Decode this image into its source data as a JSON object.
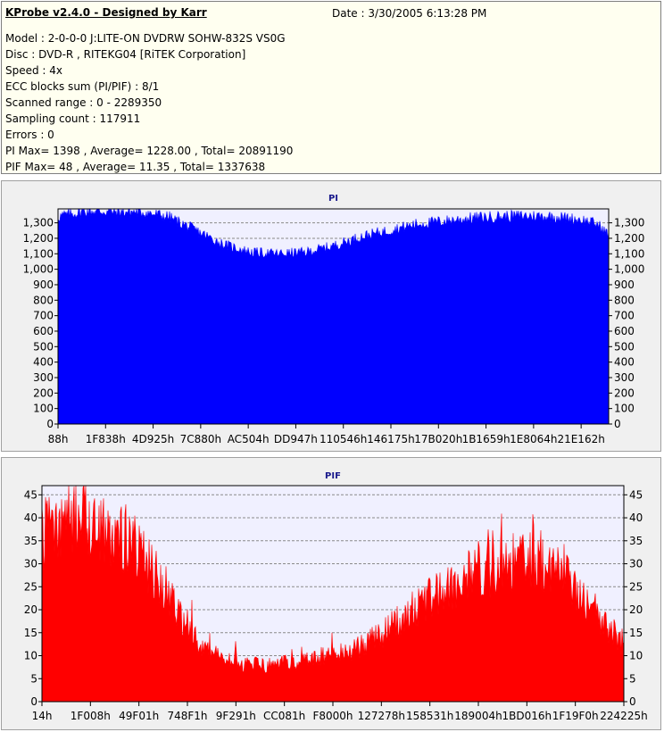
{
  "header": {
    "title": "KProbe v2.4.0 - Designed by Karr",
    "date": "Date : 3/30/2005 6:13:28 PM",
    "lines": [
      "Model : 2-0-0-0 J:LITE-ON DVDRW SOHW-832S  VS0G",
      "Disc : DVD-R , RITEKG04 [RiTEK Corporation]",
      "Speed : 4x",
      "ECC blocks sum (PI/PIF) : 8/1",
      "Scanned range : 0 - 2289350",
      "Sampling count : 117911",
      "Errors : 0",
      "PI Max= 1398 , Average= 1228.00 , Total= 20891190",
      "PIF Max= 48 , Average= 11.35 , Total= 1337638"
    ]
  },
  "colors": {
    "pi": "#0000ff",
    "pif": "#ff0000",
    "plot_bg": "#f0f0ff",
    "panel_bg": "#f0f0f0",
    "header_bg": "#fffff0"
  },
  "chart_data": [
    {
      "type": "area",
      "title": "PI",
      "series_color": "#0000ff",
      "ylim": [
        0,
        1390
      ],
      "y_ticks": [
        0,
        100,
        200,
        300,
        400,
        500,
        600,
        700,
        800,
        900,
        1000,
        1100,
        1200,
        1300
      ],
      "y_tick_labels": [
        "0",
        "100",
        "200",
        "300",
        "400",
        "500",
        "600",
        "700",
        "800",
        "900",
        "1,000",
        "1,100",
        "1,200",
        "1,300"
      ],
      "dashed_gridlines_at": [
        1200,
        1300
      ],
      "x_tick_labels": [
        "88h",
        "1F838h",
        "4D925h",
        "7C880h",
        "AC504h",
        "DD947h",
        "110546h",
        "146175h",
        "17B020h",
        "1B1659h",
        "1E8064h",
        "21E162h"
      ],
      "x_range": [
        0,
        2289350
      ],
      "profile": {
        "x": [
          0,
          0.05,
          0.15,
          0.2,
          0.25,
          0.3,
          0.35,
          0.4,
          0.45,
          0.5,
          0.55,
          0.6,
          0.65,
          0.7,
          0.75,
          0.8,
          0.85,
          0.9,
          0.95,
          0.98,
          1.0
        ],
        "y": [
          1340,
          1375,
          1370,
          1340,
          1250,
          1160,
          1110,
          1100,
          1110,
          1150,
          1210,
          1250,
          1290,
          1310,
          1330,
          1340,
          1345,
          1340,
          1320,
          1290,
          1220
        ]
      }
    },
    {
      "type": "area",
      "title": "PIF",
      "series_color": "#ff0000",
      "ylim": [
        0,
        47
      ],
      "y_ticks": [
        0,
        5,
        10,
        15,
        20,
        25,
        30,
        35,
        40,
        45
      ],
      "y_tick_labels": [
        "0",
        "5",
        "10",
        "15",
        "20",
        "25",
        "30",
        "35",
        "40",
        "45"
      ],
      "dashed_gridlines_at": [
        5,
        10,
        15,
        20,
        25,
        30,
        35,
        40,
        45
      ],
      "x_tick_labels": [
        "14h",
        "1F008h",
        "49F01h",
        "748F1h",
        "9F291h",
        "CC081h",
        "F8000h",
        "127278h",
        "158531h",
        "189004h",
        "1BD016h",
        "1F19F0h",
        "224225h"
      ],
      "x_range": [
        0,
        2289350
      ],
      "profile": {
        "x": [
          0,
          0.05,
          0.1,
          0.15,
          0.2,
          0.25,
          0.3,
          0.35,
          0.4,
          0.45,
          0.5,
          0.55,
          0.6,
          0.65,
          0.7,
          0.75,
          0.8,
          0.85,
          0.9,
          0.95,
          1.0
        ],
        "y": [
          36,
          40,
          39,
          35,
          27,
          15,
          10,
          8,
          8,
          9,
          10,
          12,
          16,
          21,
          25,
          28,
          30,
          31,
          28,
          20,
          12
        ]
      }
    }
  ]
}
